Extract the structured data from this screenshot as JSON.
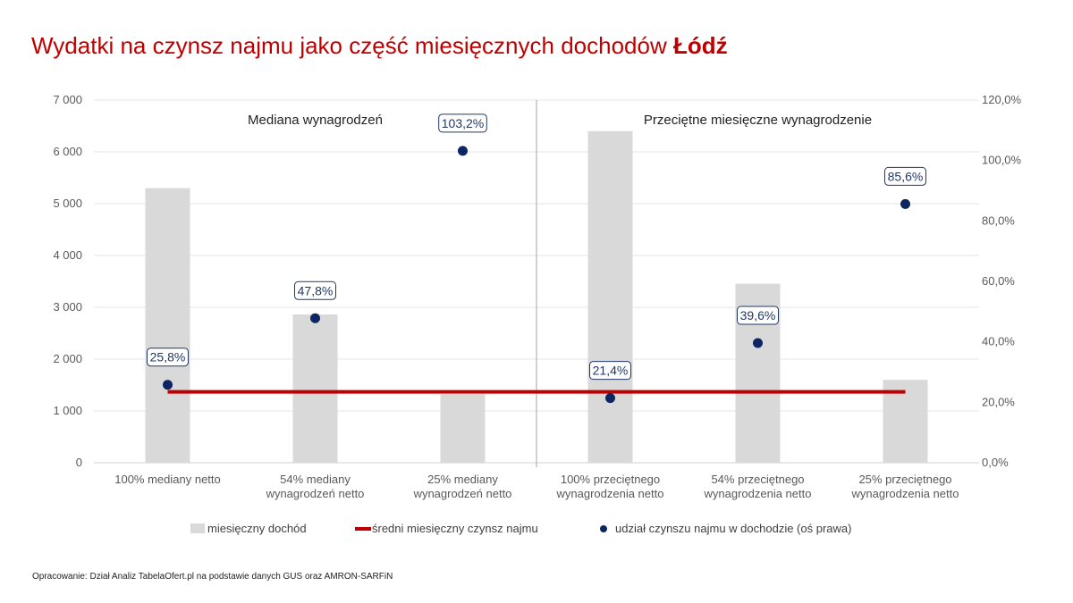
{
  "title": {
    "main": "Wydatki na czynsz najmu jako część miesięcznych dochodów",
    "city": "Łódź"
  },
  "colors": {
    "title": "#c00000",
    "bars": "#d9d9d9",
    "rent_line": "#c00000",
    "dots": "#0d2560",
    "label_border": "#203864"
  },
  "chart_data": {
    "type": "bar",
    "categories": [
      [
        "100% mediany netto"
      ],
      [
        "54% mediany",
        "wynagrodzeń netto"
      ],
      [
        "25% mediany",
        "wynagrodzeń netto"
      ],
      [
        "100% przeciętnego",
        "wynagrodzenia netto"
      ],
      [
        "54% przeciętnego",
        "wynagrodzenia netto"
      ],
      [
        "25% przeciętnego",
        "wynagrodzenia netto"
      ]
    ],
    "panels": [
      "Mediana wynagrodzeń",
      "Przeciętne miesięczne wynagrodzenie"
    ],
    "series": [
      {
        "name": "miesięczny dochód",
        "type": "bar",
        "axis": "left",
        "values": [
          5300,
          2862,
          1325,
          6400,
          3456,
          1600
        ]
      },
      {
        "name": "średni miesięczny czynsz najmu",
        "type": "line",
        "axis": "left",
        "values": [
          1368,
          1368,
          1368,
          1368,
          1368,
          1368
        ]
      },
      {
        "name": "udział czynszu najmu w dochodzie (oś prawa)",
        "type": "scatter",
        "axis": "right",
        "values": [
          25.8,
          47.8,
          103.2,
          21.4,
          39.6,
          85.6
        ],
        "labels": [
          "25,8%",
          "47,8%",
          "103,2%",
          "21,4%",
          "39,6%",
          "85,6%"
        ]
      }
    ],
    "y_left": {
      "min": 0,
      "max": 7000,
      "ticks": [
        "0",
        "1 000",
        "2 000",
        "3 000",
        "4 000",
        "5 000",
        "6 000",
        "7 000"
      ]
    },
    "y_right": {
      "min": 0,
      "max": 120,
      "ticks": [
        "0,0%",
        "20,0%",
        "40,0%",
        "60,0%",
        "80,0%",
        "100,0%",
        "120,0%"
      ]
    },
    "grid": true,
    "legend_position": "bottom"
  },
  "source": "Opracowanie: Dział Analiz TabelaOfert.pl na podstawie danych GUS oraz AMRON-SARFiN"
}
